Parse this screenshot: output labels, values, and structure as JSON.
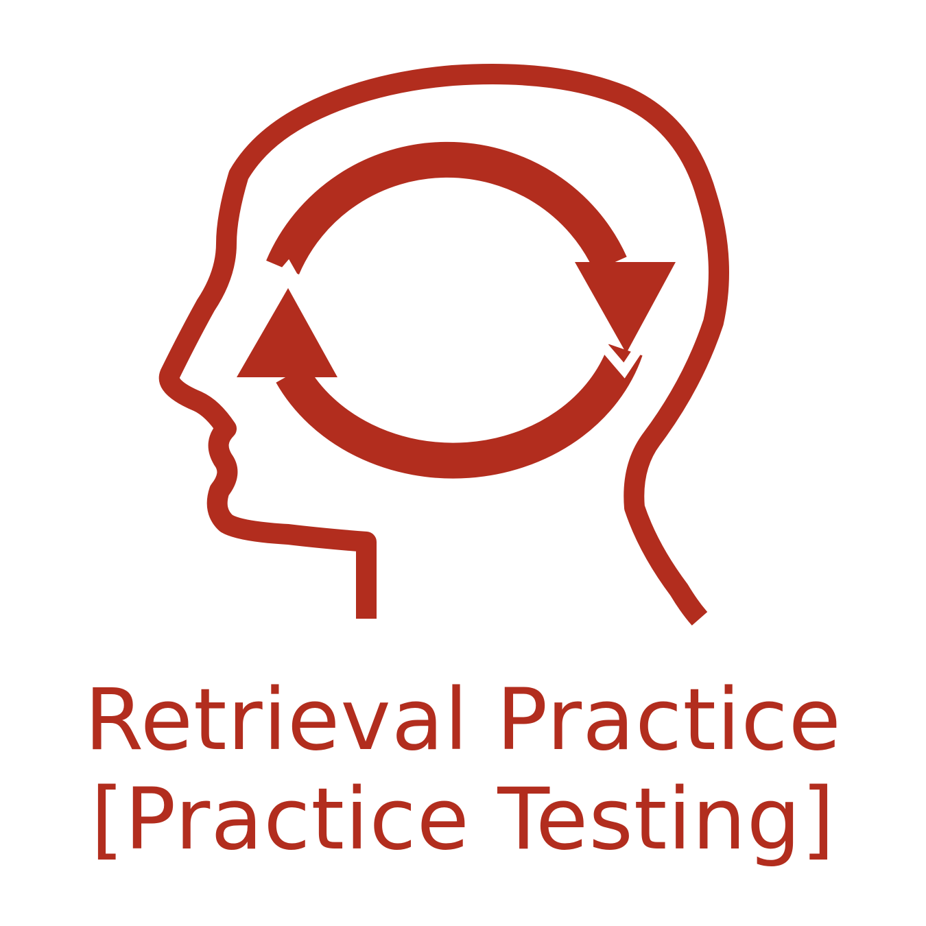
{
  "logo": {
    "icon": "head-with-cycle-arrows-icon",
    "color": "#b22d1e"
  },
  "title": {
    "line1": "Retrieval Practice",
    "line2": "[Practice Testing]"
  }
}
